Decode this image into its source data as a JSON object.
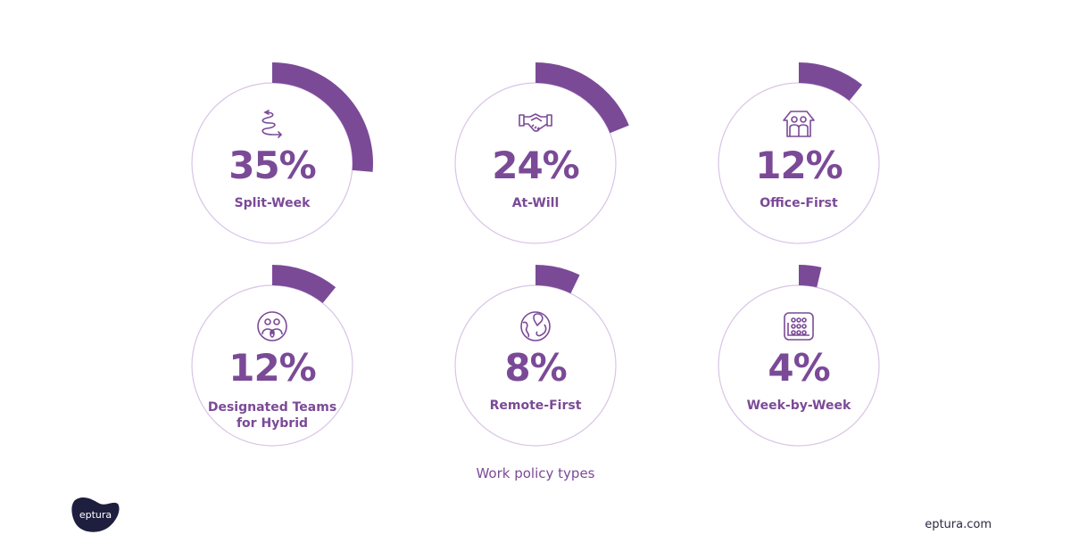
{
  "chart_data": {
    "type": "radial-progress",
    "title": "Work policy types",
    "unit": "%",
    "categories": [
      "Split-Week",
      "At-Will",
      "Office-First",
      "Designated Teams for Hybrid",
      "Remote-First",
      "Week-by-Week"
    ],
    "values": [
      35,
      24,
      12,
      12,
      8,
      4
    ],
    "items": [
      {
        "label": "Split-Week",
        "value": 35,
        "display": "35%",
        "icon": "spiral-arrow-icon",
        "sweep_deg": 95
      },
      {
        "label": "At-Will",
        "value": 24,
        "display": "24%",
        "icon": "handshake-icon",
        "sweep_deg": 68
      },
      {
        "label": "Office-First",
        "value": 12,
        "display": "12%",
        "icon": "house-people-icon",
        "sweep_deg": 39
      },
      {
        "label": "Designated Teams for Hybrid",
        "value": 12,
        "display": "12%",
        "icon": "team-circle-icon",
        "sweep_deg": 39
      },
      {
        "label": "Remote-First",
        "value": 8,
        "display": "8%",
        "icon": "globe-pin-icon",
        "sweep_deg": 26
      },
      {
        "label": "Week-by-Week",
        "value": 4,
        "display": "4%",
        "icon": "calendar-grid-icon",
        "sweep_deg": 13
      }
    ]
  },
  "cards": [
    {
      "pct": "35%",
      "label": "Split-Week",
      "sweep": 95
    },
    {
      "pct": "24%",
      "label": "At-Will",
      "sweep": 68
    },
    {
      "pct": "12%",
      "label": "Office-First",
      "sweep": 39
    },
    {
      "pct": "12%",
      "label": "Designated Teams for Hybrid",
      "label1": "Designated Teams",
      "label2": "for Hybrid",
      "sweep": 39
    },
    {
      "pct": "8%",
      "label": "Remote-First",
      "sweep": 26
    },
    {
      "pct": "4%",
      "label": "Week-by-Week",
      "sweep": 13
    }
  ],
  "caption": "Work policy types",
  "brand": {
    "logo_text": "eptura",
    "website": "eptura.com"
  },
  "colors": {
    "accent": "#7B4A97",
    "ring": "#D9C4E6",
    "logo_bg": "#1E1E3F"
  }
}
